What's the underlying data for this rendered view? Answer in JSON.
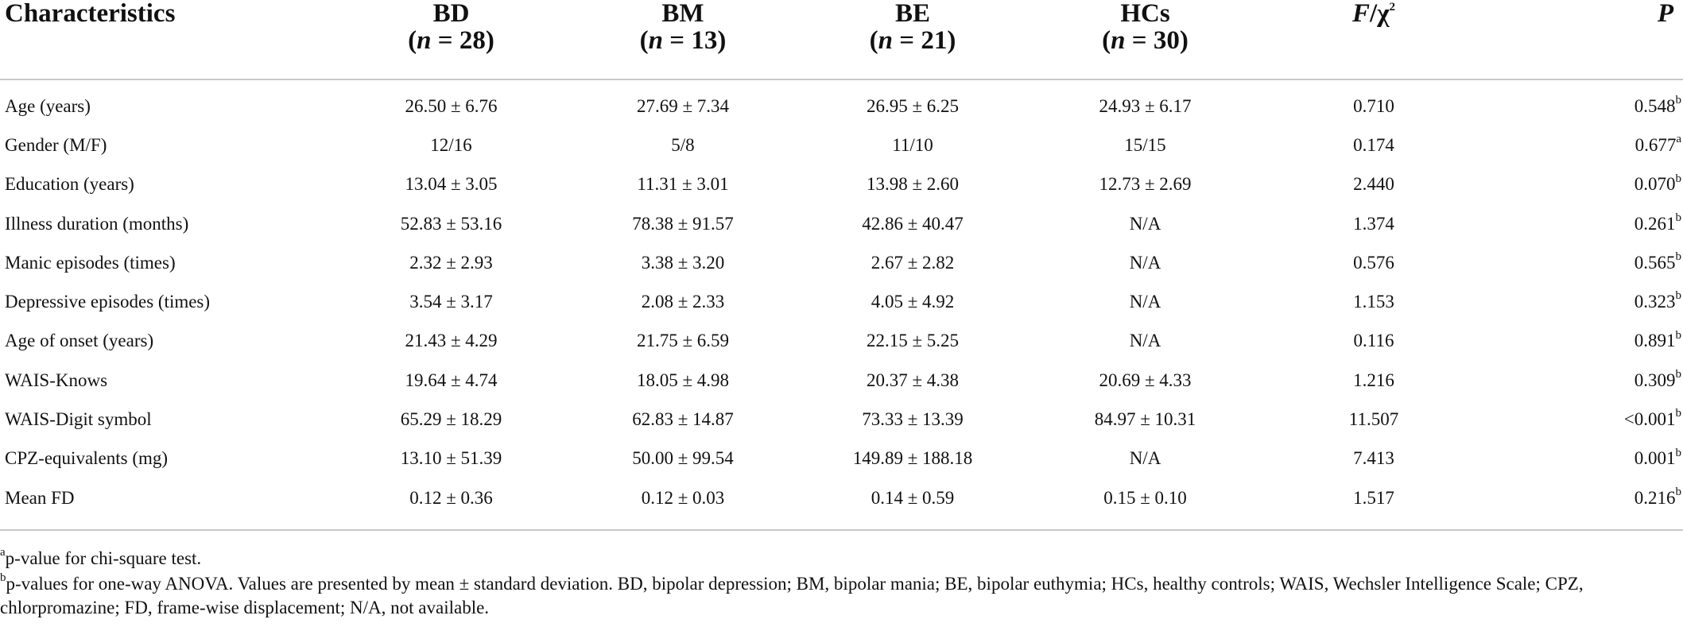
{
  "table": {
    "headers": [
      {
        "line1": "Characteristics",
        "line2": ""
      },
      {
        "line1": "BD",
        "line2_pre": "(",
        "line2_n": "n",
        "line2_post": " = 28)"
      },
      {
        "line1": "BM",
        "line2_pre": "(",
        "line2_n": "n",
        "line2_post": " = 13)"
      },
      {
        "line1": "BE",
        "line2_pre": "(",
        "line2_n": "n",
        "line2_post": " = 21)"
      },
      {
        "line1": "HCs",
        "line2_pre": "(",
        "line2_n": "n",
        "line2_post": " = 30)"
      },
      {
        "f_letter": "F",
        "chi": "/χ",
        "chi_sup": "2"
      },
      {
        "line1": "P"
      }
    ],
    "rows": [
      {
        "label": "Age (years)",
        "bd": "26.50 ± 6.76",
        "bm": "27.69 ± 7.34",
        "be": "26.95 ± 6.25",
        "hc": "24.93 ± 6.17",
        "f": "0.710",
        "p": "0.548",
        "sup": "b"
      },
      {
        "label": "Gender (M/F)",
        "bd": "12/16",
        "bm": "5/8",
        "be": "11/10",
        "hc": "15/15",
        "f": "0.174",
        "p": "0.677",
        "sup": "a"
      },
      {
        "label": "Education (years)",
        "bd": "13.04 ± 3.05",
        "bm": "11.31 ± 3.01",
        "be": "13.98 ± 2.60",
        "hc": "12.73 ± 2.69",
        "f": "2.440",
        "p": "0.070",
        "sup": "b"
      },
      {
        "label": "Illness duration (months)",
        "bd": "52.83 ± 53.16",
        "bm": "78.38 ± 91.57",
        "be": "42.86 ± 40.47",
        "hc": "N/A",
        "f": "1.374",
        "p": "0.261",
        "sup": "b"
      },
      {
        "label": "Manic episodes (times)",
        "bd": "2.32 ± 2.93",
        "bm": "3.38 ± 3.20",
        "be": "2.67 ± 2.82",
        "hc": "N/A",
        "f": "0.576",
        "p": "0.565",
        "sup": "b"
      },
      {
        "label": "Depressive episodes (times)",
        "bd": "3.54 ± 3.17",
        "bm": "2.08 ± 2.33",
        "be": "4.05 ± 4.92",
        "hc": "N/A",
        "f": "1.153",
        "p": "0.323",
        "sup": "b"
      },
      {
        "label": "Age of onset (years)",
        "bd": "21.43 ± 4.29",
        "bm": "21.75 ± 6.59",
        "be": "22.15 ± 5.25",
        "hc": "N/A",
        "f": "0.116",
        "p": "0.891",
        "sup": "b"
      },
      {
        "label": "WAIS-Knows",
        "bd": "19.64 ± 4.74",
        "bm": "18.05 ± 4.98",
        "be": "20.37 ± 4.38",
        "hc": "20.69 ± 4.33",
        "f": "1.216",
        "p": "0.309",
        "sup": "b"
      },
      {
        "label": "WAIS-Digit symbol",
        "bd": "65.29 ± 18.29",
        "bm": "62.83 ± 14.87",
        "be": "73.33 ± 13.39",
        "hc": "84.97 ± 10.31",
        "f": "11.507",
        "p": "<0.001",
        "sup": "b"
      },
      {
        "label": "CPZ-equivalents (mg)",
        "bd": "13.10 ± 51.39",
        "bm": "50.00 ± 99.54",
        "be": "149.89 ± 188.18",
        "hc": "N/A",
        "f": "7.413",
        "p": "0.001",
        "sup": "b"
      },
      {
        "label": "Mean FD",
        "bd": "0.12 ± 0.36",
        "bm": "0.12 ± 0.03",
        "be": "0.14 ± 0.59",
        "hc": "0.15 ± 0.10",
        "f": "1.517",
        "p": "0.216",
        "sup": "b"
      }
    ]
  },
  "notes": {
    "a_sup": "a",
    "a_text": "p-value for chi-square test.",
    "b_sup": "b",
    "b_text": "p-values for one-way ANOVA. Values are presented by mean ± standard deviation. BD, bipolar depression; BM, bipolar mania; BE, bipolar euthymia; HCs, healthy controls; WAIS, Wechsler Intelligence Scale; CPZ, chlorpromazine; FD, frame-wise displacement; N/A, not available."
  }
}
